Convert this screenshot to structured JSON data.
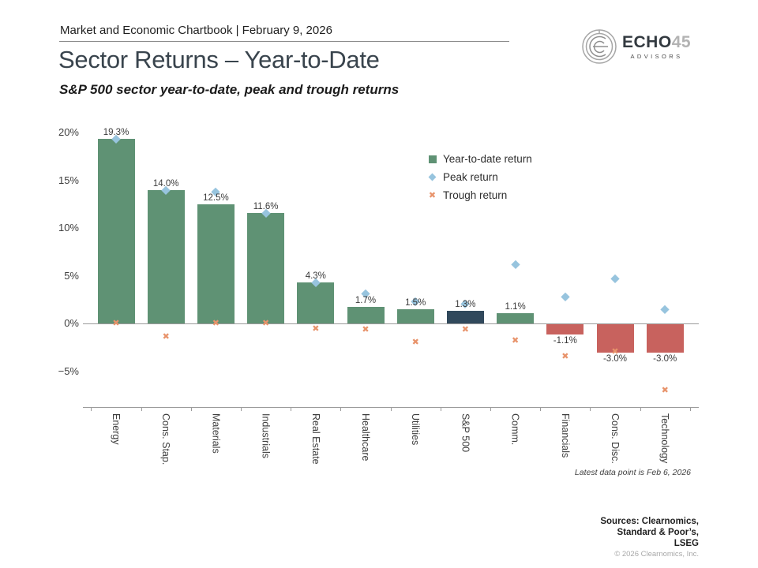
{
  "header": {
    "chartbook_label": "Market and Economic Chartbook | February 9, 2026"
  },
  "logo": {
    "brand": "ECHO",
    "brand_number": "45",
    "tagline": "ADVISORS"
  },
  "title": "Sector Returns – Year-to-Date",
  "subtitle": "S&P 500 sector year-to-date, peak and trough returns",
  "legend": [
    {
      "label": "Year-to-date return",
      "marker": "square",
      "color": "#5f9274"
    },
    {
      "label": "Peak return",
      "marker": "diamond",
      "color": "#97c4de"
    },
    {
      "label": "Trough return",
      "marker": "cross",
      "color": "#e8936b"
    }
  ],
  "footnote": "Latest data point is Feb 6, 2026",
  "sources": {
    "lines": [
      "Sources: Clearnomics,",
      "Standard & Poor’s,",
      "LSEG"
    ],
    "copyright": "© 2026 Clearnomics, Inc."
  },
  "chart_data": {
    "type": "bar",
    "title": "Sector Returns – Year-to-Date",
    "categories": [
      "Energy",
      "Cons. Stap.",
      "Materials",
      "Industrials",
      "Real Estate",
      "Healthcare",
      "Utilities",
      "S&P 500",
      "Comm.",
      "Financials",
      "Cons. Disc.",
      "Technology"
    ],
    "series": [
      {
        "name": "Year-to-date return",
        "values": [
          19.3,
          14.0,
          12.5,
          11.6,
          4.3,
          1.7,
          1.5,
          1.3,
          1.1,
          -1.1,
          -3.0,
          -3.0
        ]
      },
      {
        "name": "Peak return",
        "values": [
          19.3,
          14.0,
          13.8,
          11.6,
          4.3,
          3.1,
          2.3,
          2.1,
          6.2,
          2.8,
          4.7,
          1.5
        ]
      },
      {
        "name": "Trough return",
        "values": [
          0.0,
          -1.4,
          0.0,
          0.0,
          -0.6,
          -0.7,
          -2.0,
          -0.7,
          -1.8,
          -3.5,
          -3.0,
          -7.0
        ]
      }
    ],
    "bar_labels": [
      "19.3%",
      "14.0%",
      "12.5%",
      "11.6%",
      "4.3%",
      "1.7%",
      "1.5%",
      "1.3%",
      "1.1%",
      "-1.1%",
      "-3.0%",
      "-3.0%"
    ],
    "y_ticks": {
      "labels": [
        "20%",
        "15%",
        "10%",
        "5%",
        "0%",
        "−5%"
      ],
      "values": [
        20,
        15,
        10,
        5,
        0,
        -5
      ]
    },
    "ylim": [
      -8,
      21
    ],
    "grid": "off",
    "legend_position": "upper-right-inside",
    "highlight_category": "S&P 500",
    "colors": {
      "bar_positive": "#5f9274",
      "bar_negative": "#c8625e",
      "bar_highlight": "#31495c",
      "peak_marker": "#97c4de",
      "trough_marker": "#e8936b",
      "axis": "#9b9b9b"
    }
  }
}
